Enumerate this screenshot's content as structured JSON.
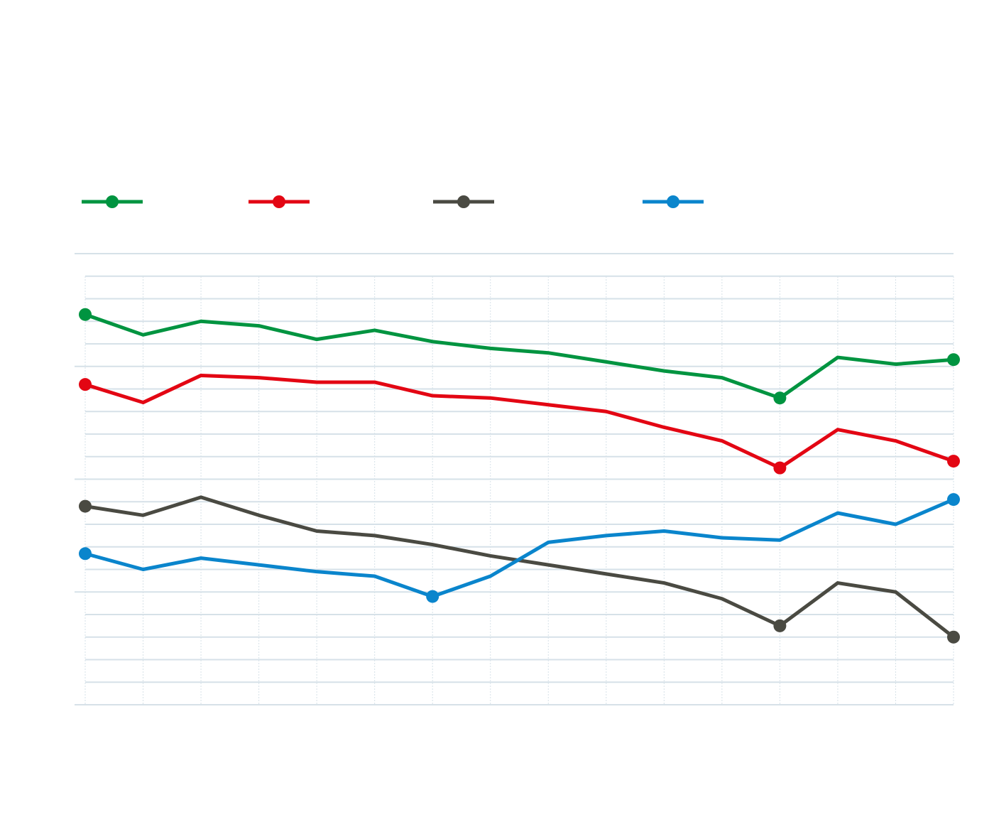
{
  "chart_data": {
    "type": "line",
    "title": "",
    "xlabel": "",
    "ylabel": "",
    "x": [
      1,
      2,
      3,
      4,
      5,
      6,
      7,
      8,
      9,
      10,
      11,
      12,
      13,
      14,
      15,
      16
    ],
    "ylim": [
      0,
      20
    ],
    "grid": true,
    "legend_position": "top-left",
    "series": [
      {
        "color": "#009440",
        "values": [
          17.3,
          16.4,
          17.0,
          16.8,
          16.2,
          16.6,
          16.1,
          15.8,
          15.6,
          15.2,
          14.8,
          14.5,
          13.6,
          15.4,
          15.1,
          15.3
        ],
        "markers": [
          0,
          12,
          15
        ]
      },
      {
        "color": "#e30613",
        "values": [
          14.2,
          13.4,
          14.6,
          14.5,
          14.3,
          14.3,
          13.7,
          13.6,
          13.3,
          13.0,
          12.3,
          11.7,
          10.5,
          12.2,
          11.7,
          10.8
        ],
        "markers": [
          0,
          12,
          15
        ]
      },
      {
        "color": "#4a4a42",
        "values": [
          8.8,
          8.4,
          9.2,
          8.4,
          7.7,
          7.5,
          7.1,
          6.6,
          6.2,
          5.8,
          5.4,
          4.7,
          3.5,
          5.4,
          5.0,
          3.0
        ],
        "markers": [
          0,
          12,
          15
        ]
      },
      {
        "color": "#0a85cc",
        "values": [
          6.7,
          6.0,
          6.5,
          6.2,
          5.9,
          5.7,
          4.8,
          5.7,
          7.2,
          7.5,
          7.7,
          7.4,
          7.3,
          8.5,
          8.0,
          9.1
        ],
        "markers": [
          0,
          6,
          15
        ]
      }
    ]
  }
}
